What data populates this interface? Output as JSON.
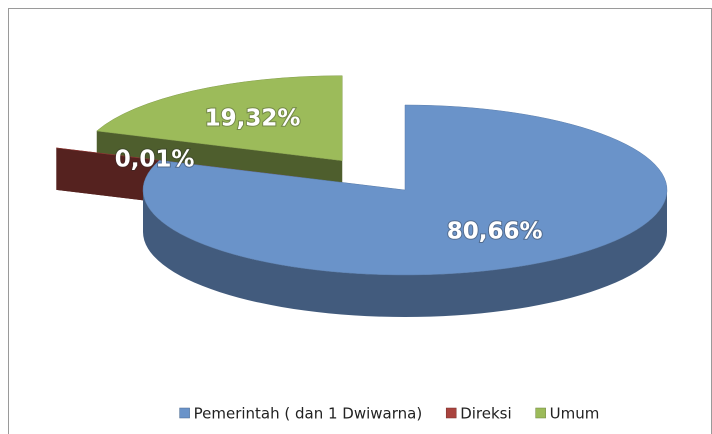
{
  "chart_data": {
    "type": "pie",
    "categories": [
      "Pemerintah ( dan 1 Dwiwarna)",
      "Direksi",
      "Umum"
    ],
    "values": [
      80.66,
      0.01,
      19.32
    ],
    "value_labels": [
      "80,66%",
      "0,01%",
      "19,32%"
    ],
    "colors": [
      "#6a93c9",
      "#a9433e",
      "#9cbb5a"
    ],
    "legend": "bottom"
  }
}
